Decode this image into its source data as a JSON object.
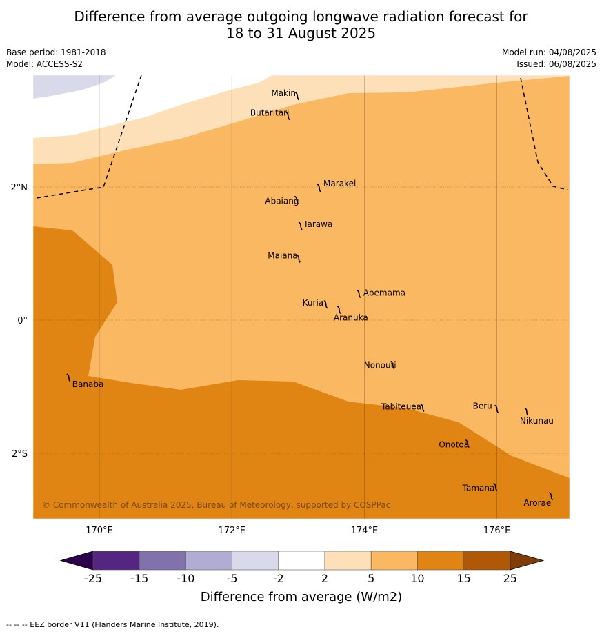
{
  "title": {
    "line1": "Difference from average outgoing longwave radiation forecast for",
    "line2": "18 to 31 August 2025"
  },
  "info": {
    "base_period": "Base period: 1981-2018",
    "model": "Model: ACCESS-S2",
    "model_run": "Model run: 04/08/2025",
    "issued": "Issued: 06/08/2025"
  },
  "map": {
    "lon_labels": [
      "170°E",
      "172°E",
      "174°E",
      "176°E"
    ],
    "lat_labels": [
      "2°N",
      "0°",
      "2°S"
    ],
    "copyright": "© Commonwealth of Australia 2025, Bureau of Meteorology, supported by COSPPac",
    "places": [
      {
        "name": "Makin",
        "lon": 172.99,
        "lat": 3.37
      },
      {
        "name": "Butaritari",
        "lon": 172.85,
        "lat": 3.07
      },
      {
        "name": "Marakei",
        "lon": 173.32,
        "lat": 1.99
      },
      {
        "name": "Abaiang",
        "lon": 172.98,
        "lat": 1.81
      },
      {
        "name": "Tarawa",
        "lon": 173.04,
        "lat": 1.42
      },
      {
        "name": "Maiana",
        "lon": 173.01,
        "lat": 0.93
      },
      {
        "name": "Abemama",
        "lon": 173.92,
        "lat": 0.4
      },
      {
        "name": "Kuria",
        "lon": 173.42,
        "lat": 0.24
      },
      {
        "name": "Aranuka",
        "lon": 173.62,
        "lat": 0.16
      },
      {
        "name": "Banaba",
        "lon": 169.54,
        "lat": -0.86
      },
      {
        "name": "Nonouti",
        "lon": 174.43,
        "lat": -0.67
      },
      {
        "name": "Tabiteuea",
        "lon": 174.88,
        "lat": -1.31
      },
      {
        "name": "Beru",
        "lon": 176.0,
        "lat": -1.33
      },
      {
        "name": "Nikunau",
        "lon": 176.45,
        "lat": -1.37
      },
      {
        "name": "Onotoa",
        "lon": 175.56,
        "lat": -1.85
      },
      {
        "name": "Tamana",
        "lon": 175.98,
        "lat": -2.5
      },
      {
        "name": "Arorae",
        "lon": 176.82,
        "lat": -2.64
      }
    ],
    "region_colors": {
      "c_neg5_neg2": "#d8d9ea",
      "c_neg2_2": "#ffffff",
      "c_2_5": "#fde0b8",
      "c_5_10": "#fbb862",
      "c_10_15": "#e08414"
    }
  },
  "colorbar": {
    "ticks": [
      "-25",
      "-15",
      "-10",
      "-5",
      "-2",
      "2",
      "5",
      "10",
      "15",
      "25"
    ],
    "colors": [
      "#552582",
      "#8172ae",
      "#b1acd3",
      "#d8d9ea",
      "#ffffff",
      "#fde0b8",
      "#fbb862",
      "#e08414",
      "#b15806"
    ],
    "under_color": "#2d004b",
    "over_color": "#7f3b08",
    "label": "Difference from average (W/m2)"
  },
  "footer": "--  --  -- EEZ border V11 (Flanders Marine Institute, 2019)."
}
